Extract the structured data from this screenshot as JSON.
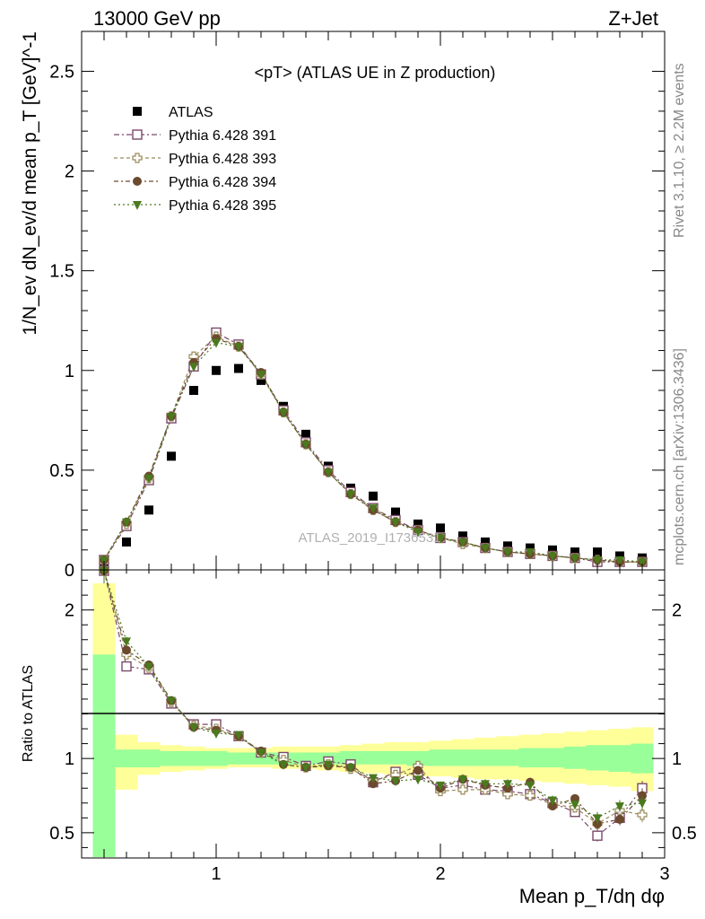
{
  "header": {
    "energy_label": "13000 GeV pp",
    "process_label": "Z+Jet"
  },
  "side_labels": {
    "rivet": "Rivet 3.1.10, ≥ 2.2M events",
    "mcplots": "mcplots.cern.ch [arXiv:1306.3436]"
  },
  "chart_data": {
    "type": "scatter",
    "title": "<pT> (ATLAS UE in Z production)",
    "watermark": "ATLAS_2019_I1736531",
    "xlabel": "Mean p_T/dη dφ",
    "ylabel": "1/N_ev dN_ev/d mean p_T [GeV]^-1",
    "ratio_ylabel": "Ratio to ATLAS",
    "xlim": [
      0.4,
      3.0
    ],
    "ylim": [
      0,
      2.7
    ],
    "ratio_ylim": [
      0.33,
      2.27
    ],
    "x_ticks": [
      "1",
      "2",
      "3"
    ],
    "y_ticks": [
      "0",
      "0.5",
      "1",
      "1.5",
      "2",
      "2.5"
    ],
    "ratio_ticks": [
      "0.5",
      "1",
      "2"
    ],
    "legend_position": "top-left",
    "x": [
      0.5,
      0.6,
      0.7,
      0.8,
      0.9,
      1.0,
      1.1,
      1.2,
      1.3,
      1.4,
      1.5,
      1.6,
      1.7,
      1.8,
      1.9,
      2.0,
      2.1,
      2.2,
      2.3,
      2.4,
      2.5,
      2.6,
      2.7,
      2.8,
      2.9
    ],
    "series": [
      {
        "name": "ATLAS",
        "color": "#000000",
        "marker": "filled-square",
        "values": [
          0.02,
          0.14,
          0.3,
          0.57,
          0.9,
          1.0,
          1.01,
          0.95,
          0.82,
          0.68,
          0.52,
          0.41,
          0.37,
          0.29,
          0.23,
          0.21,
          0.17,
          0.14,
          0.12,
          0.11,
          0.1,
          0.09,
          0.09,
          0.07,
          0.06
        ]
      },
      {
        "name": "Pythia 6.428 391",
        "color": "#7b4a6a",
        "marker": "open-square",
        "values": [
          0.05,
          0.22,
          0.45,
          0.76,
          1.02,
          1.19,
          1.13,
          0.98,
          0.8,
          0.64,
          0.5,
          0.39,
          0.31,
          0.25,
          0.2,
          0.16,
          0.14,
          0.11,
          0.09,
          0.08,
          0.07,
          0.06,
          0.04,
          0.04,
          0.04
        ]
      },
      {
        "name": "Pythia 6.428 393",
        "color": "#9a8a5a",
        "marker": "open-cross",
        "values": [
          0.05,
          0.23,
          0.46,
          0.77,
          1.07,
          1.17,
          1.12,
          0.98,
          0.79,
          0.63,
          0.49,
          0.38,
          0.3,
          0.24,
          0.2,
          0.16,
          0.13,
          0.11,
          0.09,
          0.08,
          0.07,
          0.06,
          0.05,
          0.04,
          0.04
        ]
      },
      {
        "name": "Pythia 6.428 394",
        "color": "#6b4a2e",
        "marker": "filled-circle",
        "values": [
          0.05,
          0.24,
          0.47,
          0.77,
          1.04,
          1.16,
          1.12,
          0.99,
          0.79,
          0.63,
          0.49,
          0.38,
          0.3,
          0.24,
          0.2,
          0.16,
          0.14,
          0.11,
          0.09,
          0.08,
          0.07,
          0.06,
          0.05,
          0.04,
          0.04
        ]
      },
      {
        "name": "Pythia 6.428 395",
        "color": "#4a7a1e",
        "marker": "filled-triangle-down",
        "values": [
          0.05,
          0.24,
          0.46,
          0.77,
          1.02,
          1.14,
          1.12,
          0.98,
          0.79,
          0.63,
          0.49,
          0.38,
          0.31,
          0.24,
          0.19,
          0.16,
          0.14,
          0.11,
          0.09,
          0.09,
          0.07,
          0.06,
          0.05,
          0.05,
          0.04
        ]
      }
    ],
    "ratio": {
      "reference_line": 1.0,
      "band_colors": {
        "inner": "#99ff99",
        "outer": "#ffff99"
      },
      "band_inner": {
        "lower": [
          0.33,
          0.94,
          0.94,
          0.95,
          0.95,
          0.95,
          0.96,
          0.96,
          0.96,
          0.96,
          0.96,
          0.96,
          0.96,
          0.96,
          0.95,
          0.95,
          0.95,
          0.95,
          0.95,
          0.94,
          0.94,
          0.93,
          0.92,
          0.91,
          0.9
        ],
        "upper": [
          1.7,
          1.06,
          1.06,
          1.05,
          1.05,
          1.05,
          1.04,
          1.04,
          1.04,
          1.04,
          1.04,
          1.05,
          1.05,
          1.05,
          1.05,
          1.06,
          1.06,
          1.06,
          1.06,
          1.07,
          1.07,
          1.08,
          1.09,
          1.09,
          1.1
        ]
      },
      "band_outer": {
        "lower": [
          0.33,
          0.79,
          0.89,
          0.91,
          0.92,
          0.93,
          0.94,
          0.94,
          0.93,
          0.93,
          0.92,
          0.91,
          0.9,
          0.89,
          0.88,
          0.88,
          0.87,
          0.86,
          0.86,
          0.85,
          0.84,
          0.83,
          0.82,
          0.81,
          0.78
        ],
        "upper": [
          2.18,
          1.16,
          1.11,
          1.09,
          1.08,
          1.07,
          1.07,
          1.07,
          1.08,
          1.08,
          1.08,
          1.09,
          1.1,
          1.11,
          1.11,
          1.12,
          1.13,
          1.14,
          1.15,
          1.16,
          1.17,
          1.18,
          1.19,
          1.2,
          1.21
        ]
      },
      "series": [
        {
          "name": "Pythia 6.428 391",
          "values": [
            2.3,
            1.62,
            1.6,
            1.37,
            1.23,
            1.23,
            1.15,
            1.04,
            1.01,
            0.95,
            0.98,
            0.96,
            0.84,
            0.91,
            0.89,
            0.8,
            0.82,
            0.79,
            0.78,
            0.76,
            0.7,
            0.64,
            0.48,
            0.6,
            0.8
          ]
        },
        {
          "name": "Pythia 6.428 393",
          "values": [
            2.3,
            1.7,
            1.61,
            1.38,
            1.22,
            1.2,
            1.15,
            1.04,
            0.99,
            0.94,
            0.96,
            0.93,
            0.85,
            0.89,
            0.95,
            0.78,
            0.79,
            0.79,
            0.76,
            0.75,
            0.69,
            0.67,
            0.56,
            0.65,
            0.62
          ]
        },
        {
          "name": "Pythia 6.428 394",
          "values": [
            2.3,
            1.73,
            1.63,
            1.39,
            1.21,
            1.19,
            1.15,
            1.05,
            0.96,
            0.94,
            0.95,
            0.94,
            0.83,
            0.85,
            0.92,
            0.8,
            0.86,
            0.82,
            0.8,
            0.84,
            0.68,
            0.73,
            0.56,
            0.59,
            0.75
          ]
        },
        {
          "name": "Pythia 6.428 395",
          "values": [
            2.3,
            1.79,
            1.62,
            1.39,
            1.21,
            1.17,
            1.16,
            1.04,
            0.96,
            0.94,
            0.96,
            0.94,
            0.87,
            0.85,
            0.86,
            0.82,
            0.86,
            0.83,
            0.83,
            0.82,
            0.72,
            0.69,
            0.6,
            0.68,
            0.7
          ]
        }
      ],
      "error": [
        0.12,
        0.03,
        0.02,
        0.02,
        0.02,
        0.02,
        0.02,
        0.02,
        0.02,
        0.02,
        0.02,
        0.02,
        0.02,
        0.02,
        0.02,
        0.02,
        0.03,
        0.03,
        0.03,
        0.03,
        0.03,
        0.03,
        0.04,
        0.04,
        0.05
      ]
    }
  }
}
